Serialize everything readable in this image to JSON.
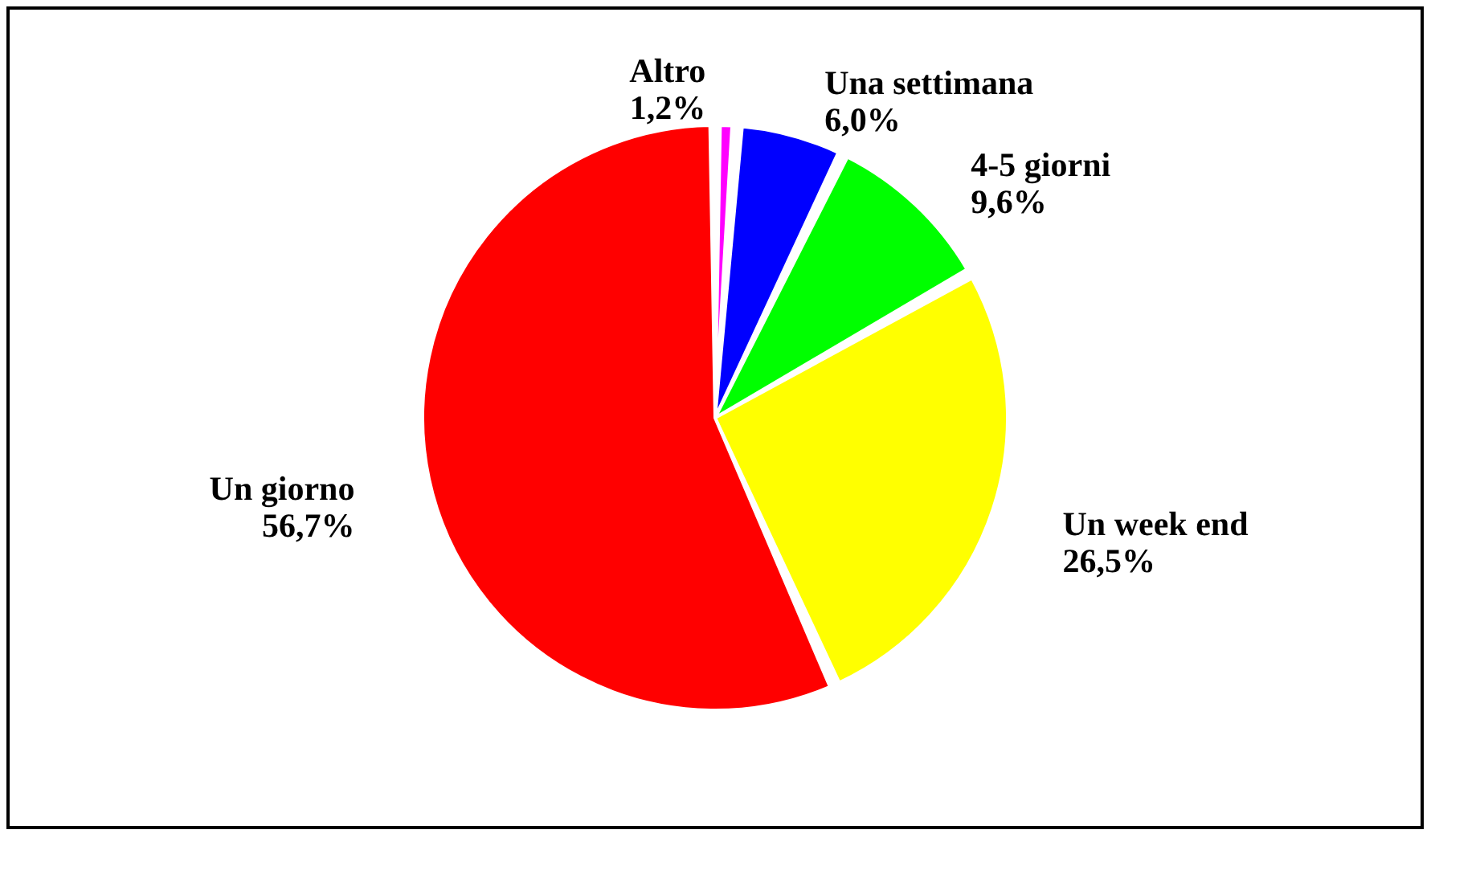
{
  "chart_data": {
    "type": "pie",
    "categories": [
      "Altro",
      "Una settimana",
      "4-5 giorni",
      "Un week end",
      "Un giorno"
    ],
    "values": [
      1.2,
      6.0,
      9.6,
      26.5,
      56.7
    ],
    "colors": [
      "#ff00ff",
      "#0000ff",
      "#00ff00",
      "#ffff00",
      "#ff0000"
    ],
    "value_labels": [
      "1,2%",
      "6,0%",
      "9,6%",
      "26,5%",
      "56,7%"
    ],
    "legend": false
  }
}
